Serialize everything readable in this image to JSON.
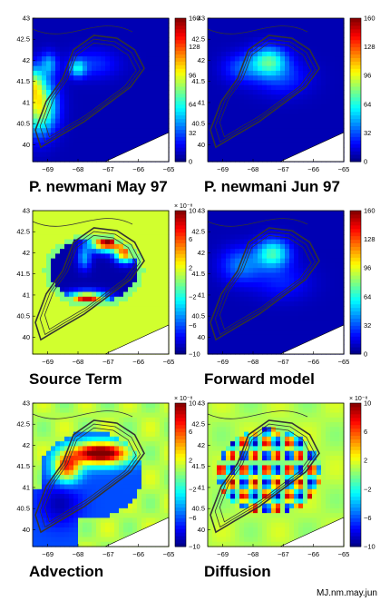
{
  "figure": {
    "credit": "MJ.nm.may.jun"
  },
  "chart_data": [
    {
      "type": "heatmap",
      "title": "P. newmani  May 97",
      "x_ticks": [
        -69,
        -68,
        -67,
        -66,
        -65
      ],
      "y_ticks": [
        40,
        40.5,
        41,
        41.5,
        42,
        42.5,
        43
      ],
      "xlim": [
        -69.5,
        -65
      ],
      "ylim": [
        39.6,
        43
      ],
      "colorbar": {
        "min": 0,
        "max": 160,
        "ticks": [
          0,
          32,
          64,
          96,
          128,
          160
        ],
        "exponent": ""
      },
      "field": "high values (red/orange) along the southwest coast near -69.5,40.5, yellow patches near -68.5,41.7, low blue elsewhere"
    },
    {
      "type": "heatmap",
      "title": "P. newmani  Jun 97",
      "x_ticks": [
        -69,
        -68,
        -67,
        -66,
        -65
      ],
      "y_ticks": [
        40,
        40.5,
        41,
        41.5,
        42,
        42.5,
        43
      ],
      "xlim": [
        -69.5,
        -65
      ],
      "ylim": [
        39.6,
        43
      ],
      "colorbar": {
        "min": 0,
        "max": 160,
        "ticks": [
          0,
          32,
          64,
          96,
          128,
          160
        ],
        "exponent": ""
      },
      "field": "moderate cyan/yellow patch centered on the bank near -67.5,42, low blue elsewhere"
    },
    {
      "type": "heatmap",
      "title": "Source Term",
      "x_ticks": [
        -69,
        -68,
        -67,
        -66,
        -65
      ],
      "y_ticks": [
        40,
        40.5,
        41,
        41.5,
        42,
        42.5,
        43
      ],
      "xlim": [
        -69.5,
        -65
      ],
      "ylim": [
        39.6,
        43
      ],
      "colorbar": {
        "min": -10,
        "max": 10,
        "ticks": [
          -10,
          -6,
          -2,
          2,
          6,
          10
        ],
        "exponent": "× 10⁻⁸"
      },
      "field": "negative (blue) interior of the bank, positive (red) along the northern and southern rims, neutral green outside"
    },
    {
      "type": "heatmap",
      "title": "Forward model",
      "x_ticks": [
        -69,
        -68,
        -67,
        -66,
        -65
      ],
      "y_ticks": [
        40,
        40.5,
        41,
        41.5,
        42,
        42.5,
        43
      ],
      "xlim": [
        -69.5,
        -65
      ],
      "ylim": [
        39.6,
        43
      ],
      "colorbar": {
        "min": 0,
        "max": 160,
        "ticks": [
          0,
          32,
          64,
          96,
          128,
          160
        ],
        "exponent": ""
      },
      "field": "moderate cyan/yellow patch on the bank near -67.5,42, low blue elsewhere"
    },
    {
      "type": "heatmap",
      "title": "Advection",
      "x_ticks": [
        -69,
        -68,
        -67,
        -66,
        -65
      ],
      "y_ticks": [
        40,
        40.5,
        41,
        41.5,
        42,
        42.5,
        43
      ],
      "xlim": [
        -69.5,
        -65
      ],
      "ylim": [
        39.6,
        43
      ],
      "colorbar": {
        "min": -10,
        "max": 10,
        "ticks": [
          -10,
          -6,
          -2,
          2,
          6,
          10
        ],
        "exponent": "× 10⁻⁸"
      },
      "field": "strong positive (red) band across the northern bank, negative (blue) to the south and west, green outside"
    },
    {
      "type": "heatmap",
      "title": "Diffusion",
      "x_ticks": [
        -69,
        -68,
        -67,
        -66,
        -65
      ],
      "y_ticks": [
        40,
        40.5,
        41,
        41.5,
        42,
        42.5,
        43
      ],
      "xlim": [
        -69.5,
        -65
      ],
      "ylim": [
        39.6,
        43
      ],
      "colorbar": {
        "min": -10,
        "max": 10,
        "ticks": [
          -10,
          -6,
          -2,
          2,
          6,
          10
        ],
        "exponent": "× 10⁻⁸"
      },
      "field": "mixed positive/negative small-scale pattern over the bank, red along the southwest coast, green outside"
    }
  ]
}
